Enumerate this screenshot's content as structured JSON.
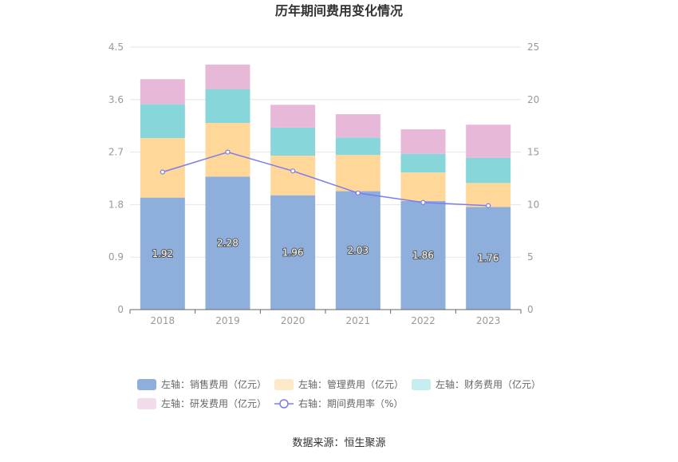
{
  "chart_data": {
    "type": "bar",
    "stacked": true,
    "title": "历年期间费用变化情况",
    "categories": [
      "2018",
      "2019",
      "2020",
      "2021",
      "2022",
      "2023"
    ],
    "left_axis": {
      "min": 0,
      "max": 4.5,
      "ticks": [
        "0",
        "0.9",
        "1.8",
        "2.7",
        "3.6",
        "4.5"
      ]
    },
    "right_axis": {
      "min": 0,
      "max": 25,
      "ticks": [
        "0",
        "5",
        "10",
        "15",
        "20",
        "25"
      ]
    },
    "series": [
      {
        "name": "左轴：销售费用（亿元）",
        "axis": "left",
        "color": "#8eaedb",
        "values": [
          1.92,
          2.28,
          1.96,
          2.03,
          1.86,
          1.76
        ],
        "show_labels": true
      },
      {
        "name": "左轴：管理费用（亿元）",
        "axis": "left",
        "color": "#ffd899",
        "values": [
          1.02,
          0.92,
          0.68,
          0.62,
          0.49,
          0.41
        ]
      },
      {
        "name": "左轴：财务费用（亿元）",
        "axis": "left",
        "color": "#86d6da",
        "values": [
          0.58,
          0.58,
          0.48,
          0.3,
          0.32,
          0.43
        ]
      },
      {
        "name": "左轴：研发费用（亿元）",
        "axis": "left",
        "color": "#e8b8d8",
        "values": [
          0.43,
          0.42,
          0.39,
          0.4,
          0.42,
          0.57
        ]
      },
      {
        "name": "右轴：期间费用率（%）",
        "axis": "right",
        "type": "line",
        "color": "#7b7cf0",
        "values": [
          13.1,
          15.0,
          13.2,
          11.1,
          10.2,
          9.9
        ]
      }
    ],
    "legend_position": "bottom",
    "grid": true
  },
  "source_label": "数据来源：恒生聚源"
}
